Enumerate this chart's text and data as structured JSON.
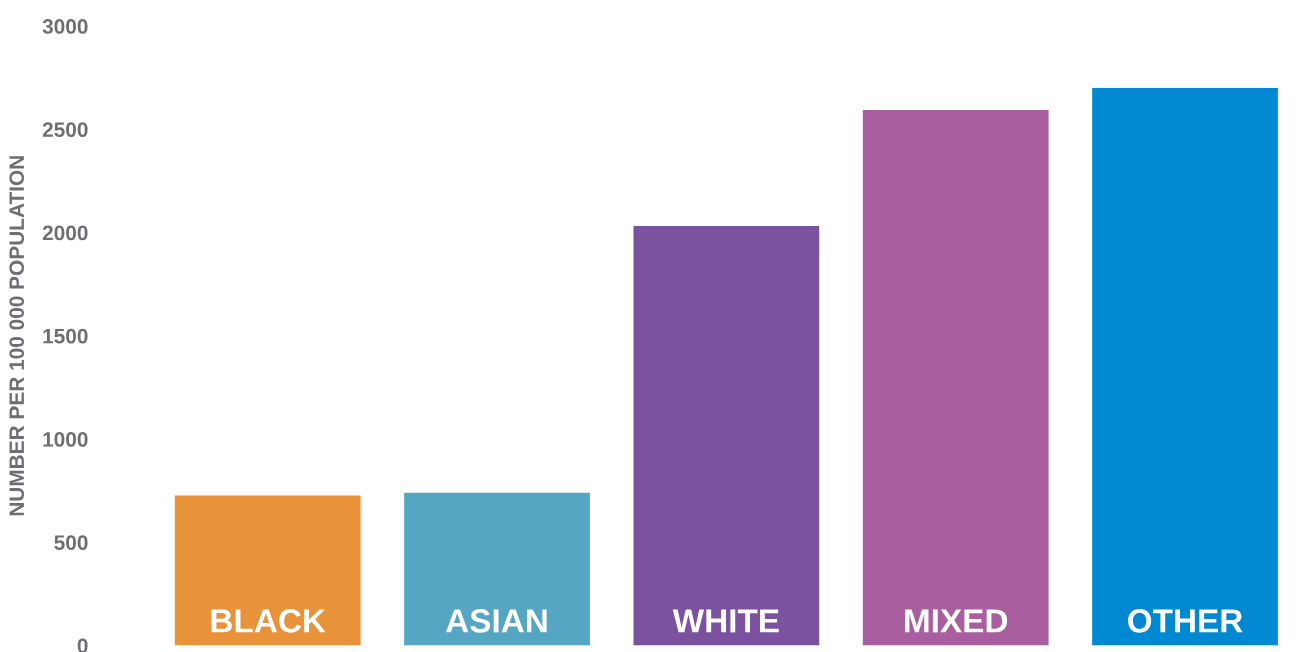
{
  "chart_data": {
    "type": "bar",
    "ylabel": "NUMBER PER 100 000 POPULATION",
    "categories": [
      "BLACK",
      "ASIAN",
      "WHITE",
      "MIXED",
      "OTHER"
    ],
    "values": [
      726,
      740,
      2032,
      2594,
      2700
    ],
    "colors": [
      "#e8923a",
      "#55a6c2",
      "#7b52a0",
      "#a95f9f",
      "#0088d1"
    ],
    "ylim": [
      0,
      3000
    ],
    "yticks": [
      0,
      500,
      1000,
      1500,
      2000,
      2500,
      3000
    ],
    "grid": false
  }
}
